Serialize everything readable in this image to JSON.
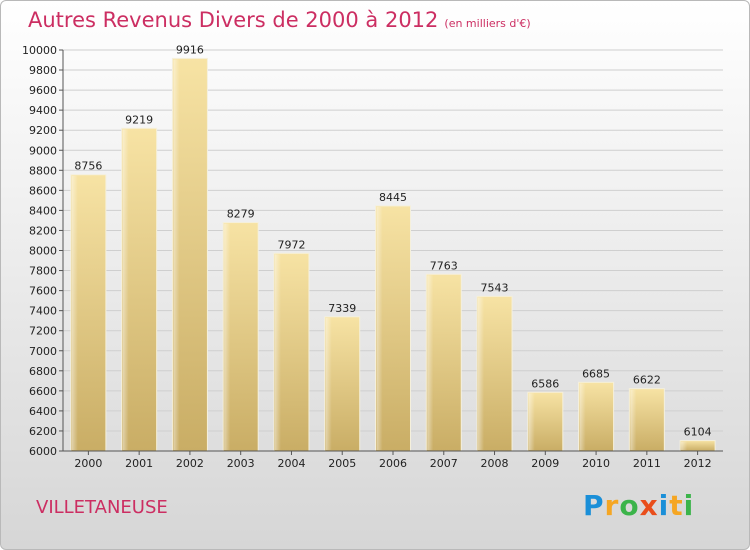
{
  "header": {
    "title": "Autres Revenus Divers de 2000 à 2012",
    "unit": "(en milliers d'€)"
  },
  "commune": "VILLETANEUSE",
  "logo": {
    "letters": [
      "P",
      "r",
      "o",
      "x",
      "i",
      "t",
      "i"
    ],
    "colors": [
      "#1a8fd8",
      "#f5a623",
      "#3bb44a",
      "#e94e1b",
      "#1a8fd8",
      "#f5a623",
      "#3bb44a"
    ]
  },
  "chart_data": {
    "type": "bar",
    "title": "Autres Revenus Divers de 2000 à 2012",
    "subtitle": "(en milliers d'€)",
    "categories": [
      "2000",
      "2001",
      "2002",
      "2003",
      "2004",
      "2005",
      "2006",
      "2007",
      "2008",
      "2009",
      "2010",
      "2011",
      "2012"
    ],
    "values": [
      8756,
      9219,
      9916,
      8279,
      7972,
      7339,
      8445,
      7763,
      7543,
      6586,
      6685,
      6622,
      6104
    ],
    "value_labels": [
      "8756",
      "9219",
      "9916",
      "8279",
      "7972",
      "7339",
      "8445",
      "7763",
      "7543",
      "6586",
      "6685",
      "6622",
      "6104"
    ],
    "yticks": [
      6000,
      6200,
      6400,
      6600,
      6800,
      7000,
      7200,
      7400,
      7600,
      7800,
      8000,
      8200,
      8400,
      8600,
      8800,
      9000,
      9200,
      9400,
      9600,
      9800,
      10000
    ],
    "ylim": [
      6000,
      10000
    ],
    "grid": true,
    "bar_color": "#e9cf85"
  }
}
